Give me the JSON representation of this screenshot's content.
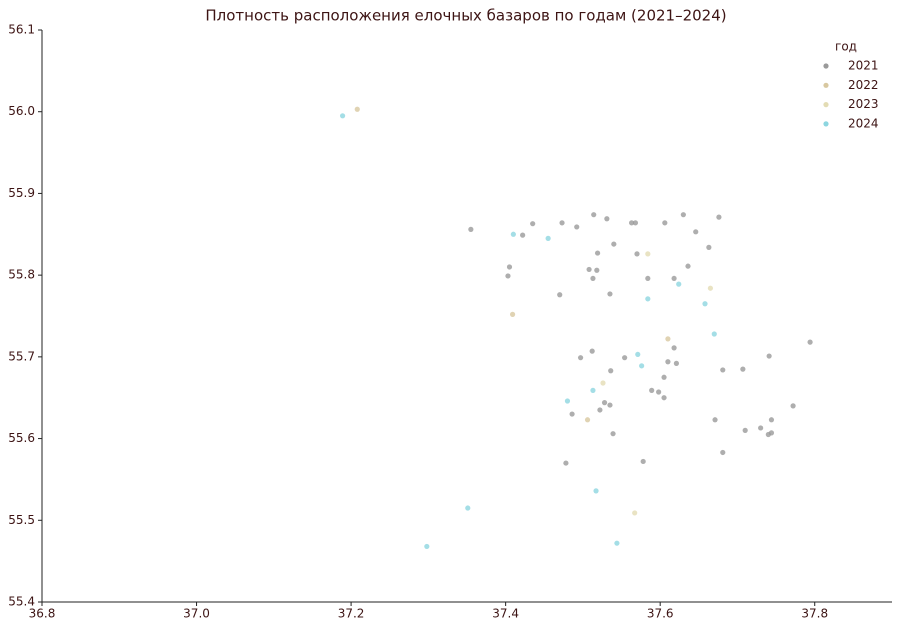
{
  "chart_data": {
    "type": "scatter",
    "title": "Плотность расположения елочных базаров по годам (2021–2024)",
    "legend_title": "год",
    "legend": "upper right",
    "grid": false,
    "xlim": [
      36.8,
      37.9
    ],
    "ylim": [
      55.4,
      56.1
    ],
    "xticks": [
      36.8,
      {
        "value": 37,
        "label": "37.0"
      },
      37.2,
      37.4,
      37.6,
      37.8
    ],
    "yticks": [
      55.4,
      55.5,
      55.6,
      55.7,
      55.8,
      55.9,
      {
        "value": 56,
        "label": "56.0"
      },
      56.1
    ],
    "series": [
      {
        "name": "2021",
        "color": "#9a9a9a",
        "x": [
          37.355,
          37.435,
          37.422,
          37.473,
          37.492,
          37.514,
          37.531,
          37.563,
          37.568,
          37.606,
          37.63,
          37.676,
          37.646,
          37.54,
          37.519,
          37.57,
          37.663,
          37.405,
          37.508,
          37.518,
          37.403,
          37.513,
          37.584,
          37.618,
          37.636,
          37.47,
          37.535,
          37.512,
          37.497,
          37.554,
          37.618,
          37.61,
          37.621,
          37.536,
          37.605,
          37.681,
          37.707,
          37.741,
          37.794,
          37.589,
          37.598,
          37.605,
          37.528,
          37.535,
          37.522,
          37.486,
          37.772,
          37.744,
          37.671,
          37.539,
          37.71,
          37.73,
          37.74,
          37.744,
          37.681,
          37.578,
          37.478
        ],
        "y": [
          55.856,
          55.863,
          55.849,
          55.864,
          55.859,
          55.874,
          55.869,
          55.864,
          55.864,
          55.864,
          55.874,
          55.871,
          55.853,
          55.838,
          55.827,
          55.826,
          55.834,
          55.81,
          55.807,
          55.806,
          55.799,
          55.796,
          55.796,
          55.796,
          55.811,
          55.776,
          55.777,
          55.707,
          55.699,
          55.699,
          55.711,
          55.694,
          55.692,
          55.683,
          55.675,
          55.684,
          55.685,
          55.701,
          55.718,
          55.659,
          55.657,
          55.65,
          55.644,
          55.641,
          55.635,
          55.63,
          55.64,
          55.623,
          55.623,
          55.606,
          55.61,
          55.613,
          55.605,
          55.607,
          55.583,
          55.572,
          55.57
        ]
      },
      {
        "name": "2022",
        "color": "#d8c8a0",
        "x": [
          37.208,
          37.409,
          37.506,
          37.61
        ],
        "y": [
          56.003,
          55.752,
          55.623,
          55.722
        ]
      },
      {
        "name": "2023",
        "color": "#e3dcb4",
        "x": [
          37.584,
          37.665,
          37.526,
          37.567
        ],
        "y": [
          55.826,
          55.784,
          55.668,
          55.509
        ]
      },
      {
        "name": "2024",
        "color": "#8dd6e0",
        "x": [
          37.189,
          37.41,
          37.455,
          37.584,
          37.624,
          37.658,
          37.67,
          37.571,
          37.576,
          37.48,
          37.513,
          37.517,
          37.351,
          37.298,
          37.544
        ],
        "y": [
          55.995,
          55.85,
          55.845,
          55.771,
          55.789,
          55.765,
          55.728,
          55.703,
          55.689,
          55.646,
          55.659,
          55.536,
          55.515,
          55.468,
          55.472
        ]
      }
    ]
  }
}
